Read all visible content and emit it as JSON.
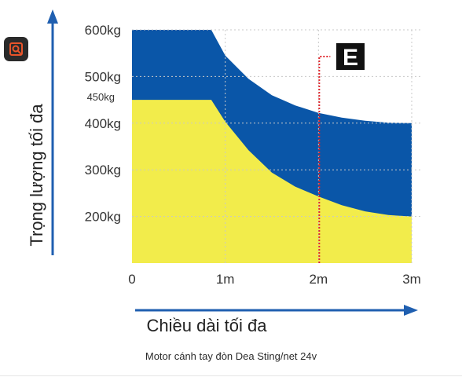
{
  "chart_data": {
    "type": "area",
    "y_axis_title": "Trọng lượng tối đa",
    "x_axis_title": "Chiều dài tối đa",
    "x_ticks": [
      {
        "value": 0,
        "label": "0"
      },
      {
        "value": 1,
        "label": "1m"
      },
      {
        "value": 2,
        "label": "2m"
      },
      {
        "value": 3,
        "label": "3m"
      }
    ],
    "y_ticks": [
      {
        "value": 200,
        "label": "200kg"
      },
      {
        "value": 300,
        "label": "300kg"
      },
      {
        "value": 400,
        "label": "400kg"
      },
      {
        "value": 500,
        "label": "500kg"
      },
      {
        "value": 600,
        "label": "600kg"
      }
    ],
    "y_extra_label": {
      "value": 450,
      "label": "450kg"
    },
    "xlim": [
      0,
      3
    ],
    "ylim": [
      100,
      600
    ],
    "series": [
      {
        "color": "#0a56a8",
        "points": [
          [
            0,
            600
          ],
          [
            0.85,
            600
          ],
          [
            1,
            545
          ],
          [
            1.25,
            495
          ],
          [
            1.5,
            460
          ],
          [
            1.75,
            438
          ],
          [
            2,
            422
          ],
          [
            2.25,
            412
          ],
          [
            2.5,
            405
          ],
          [
            2.75,
            401
          ],
          [
            3,
            400
          ]
        ]
      },
      {
        "color": "#f2ec4b",
        "points": [
          [
            0,
            450
          ],
          [
            0.85,
            450
          ],
          [
            1,
            403
          ],
          [
            1.25,
            342
          ],
          [
            1.5,
            294
          ],
          [
            1.75,
            264
          ],
          [
            2,
            243
          ],
          [
            2.25,
            224
          ],
          [
            2.5,
            211
          ],
          [
            2.75,
            203
          ],
          [
            3,
            200
          ]
        ]
      }
    ],
    "marker": {
      "x": 2,
      "label": "E",
      "color": "#e0262c"
    },
    "grid": true
  },
  "caption": "Motor cánh tay đòn Dea Sting/net 24v",
  "icons": {
    "zoom": "zoom-search-icon"
  },
  "colors": {
    "axis_arrow": "#1f5fb0",
    "grid": "#c8c8c8"
  }
}
